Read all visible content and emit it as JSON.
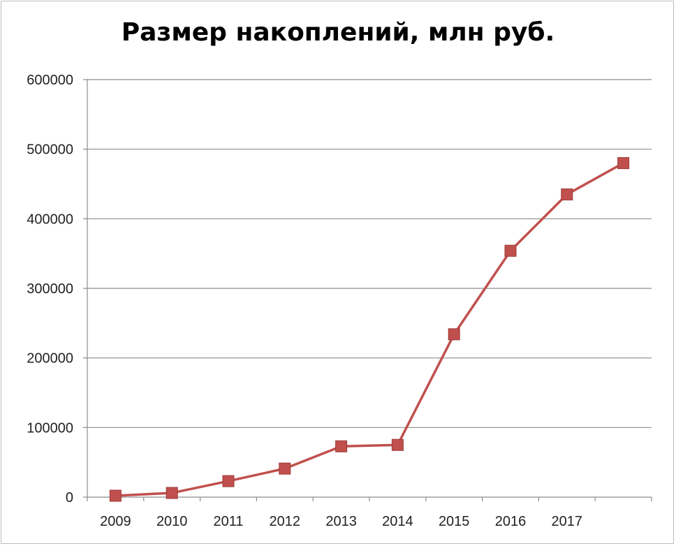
{
  "chart_data": {
    "type": "line",
    "title": "Размер накоплений, млн руб.",
    "xlabel": "",
    "ylabel": "",
    "categories": [
      "2009",
      "2010",
      "2011",
      "2012",
      "2013",
      "2014",
      "2015",
      "2016",
      "2017"
    ],
    "y_tick_labels": [
      "0",
      "100000",
      "200000",
      "300000",
      "400000",
      "500000",
      "600000"
    ],
    "ylim": [
      0,
      600000
    ],
    "x": [
      "2009",
      "2010",
      "2011",
      "2012",
      "2013",
      "2014",
      "2015",
      "2016",
      "2017",
      ""
    ],
    "series": [
      {
        "values": [
          2000,
          6000,
          23000,
          41000,
          73000,
          75000,
          234000,
          354000,
          435000,
          480000
        ],
        "color": "#c0504d",
        "marker": "square"
      }
    ],
    "grid": true,
    "legend": "none"
  }
}
